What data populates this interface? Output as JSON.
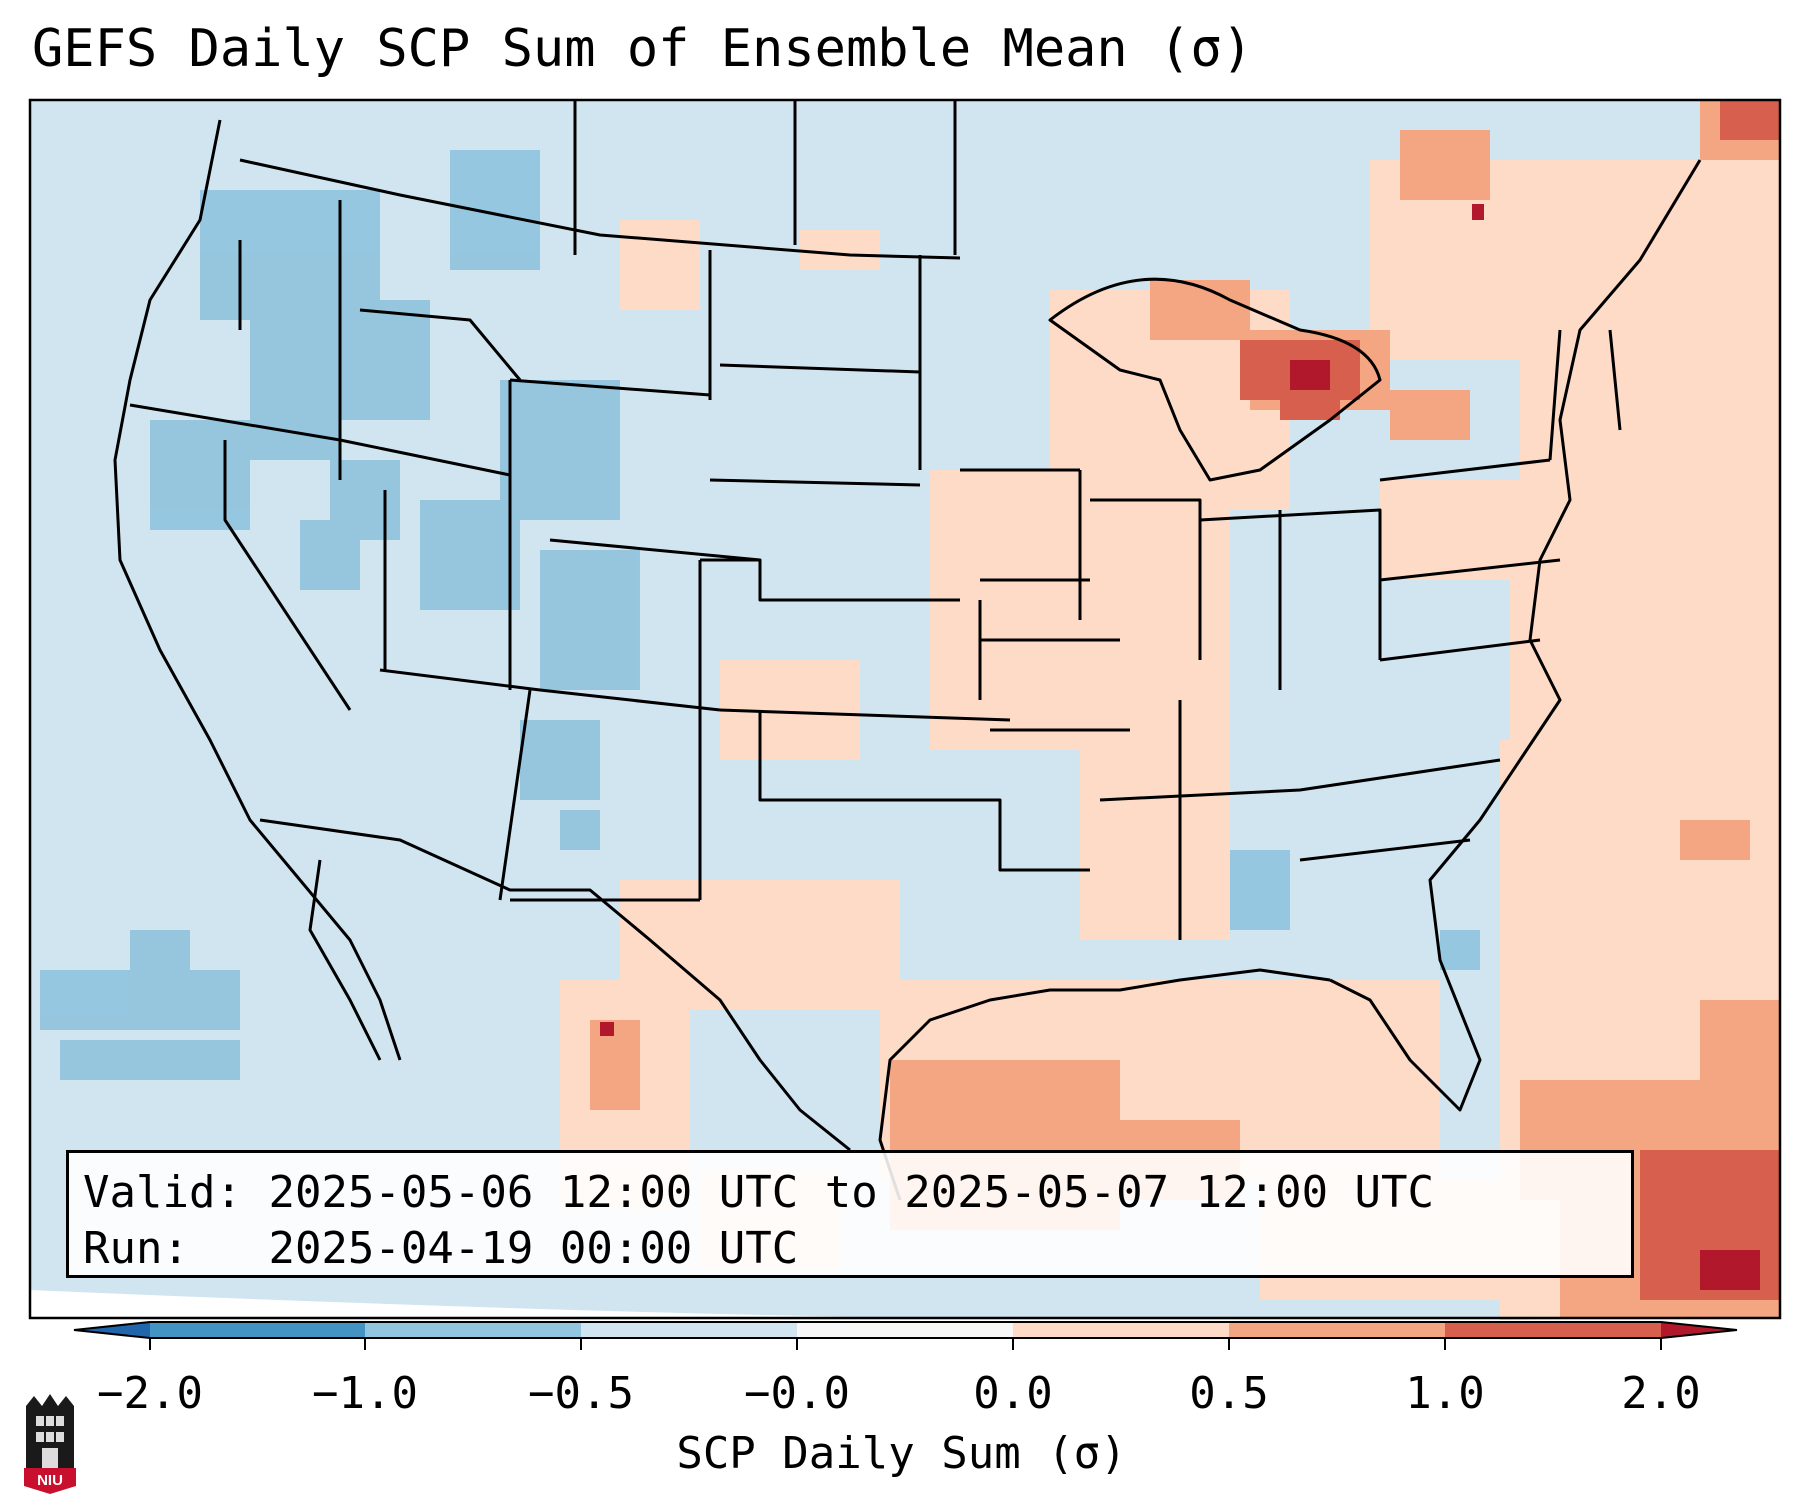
{
  "title": "GEFS Daily SCP Sum of Ensemble Mean (σ)",
  "info": {
    "valid_label": "Valid:",
    "valid_value": "2025-05-06 12:00 UTC to 2025-05-07 12:00 UTC",
    "run_label": "Run:",
    "run_value": "2025-04-19 00:00 UTC"
  },
  "colorbar": {
    "label": "SCP Daily Sum (σ)",
    "ticks": [
      "−2.0",
      "−1.0",
      "−0.5",
      "−0.0",
      "0.0",
      "0.5",
      "1.0",
      "2.0"
    ],
    "colors": [
      "#2166ac",
      "#4393c3",
      "#92c5de",
      "#d1e5f0",
      "#f7f7f7",
      "#fddbc7",
      "#f4a582",
      "#d6604d",
      "#b2182b"
    ]
  },
  "logo": {
    "text": "NIU",
    "brand_color": "#c8102e"
  },
  "map": {
    "projection": "Lambert Conformal",
    "domain": "CONUS",
    "background_anomaly_color": "#d1e5f0"
  }
}
